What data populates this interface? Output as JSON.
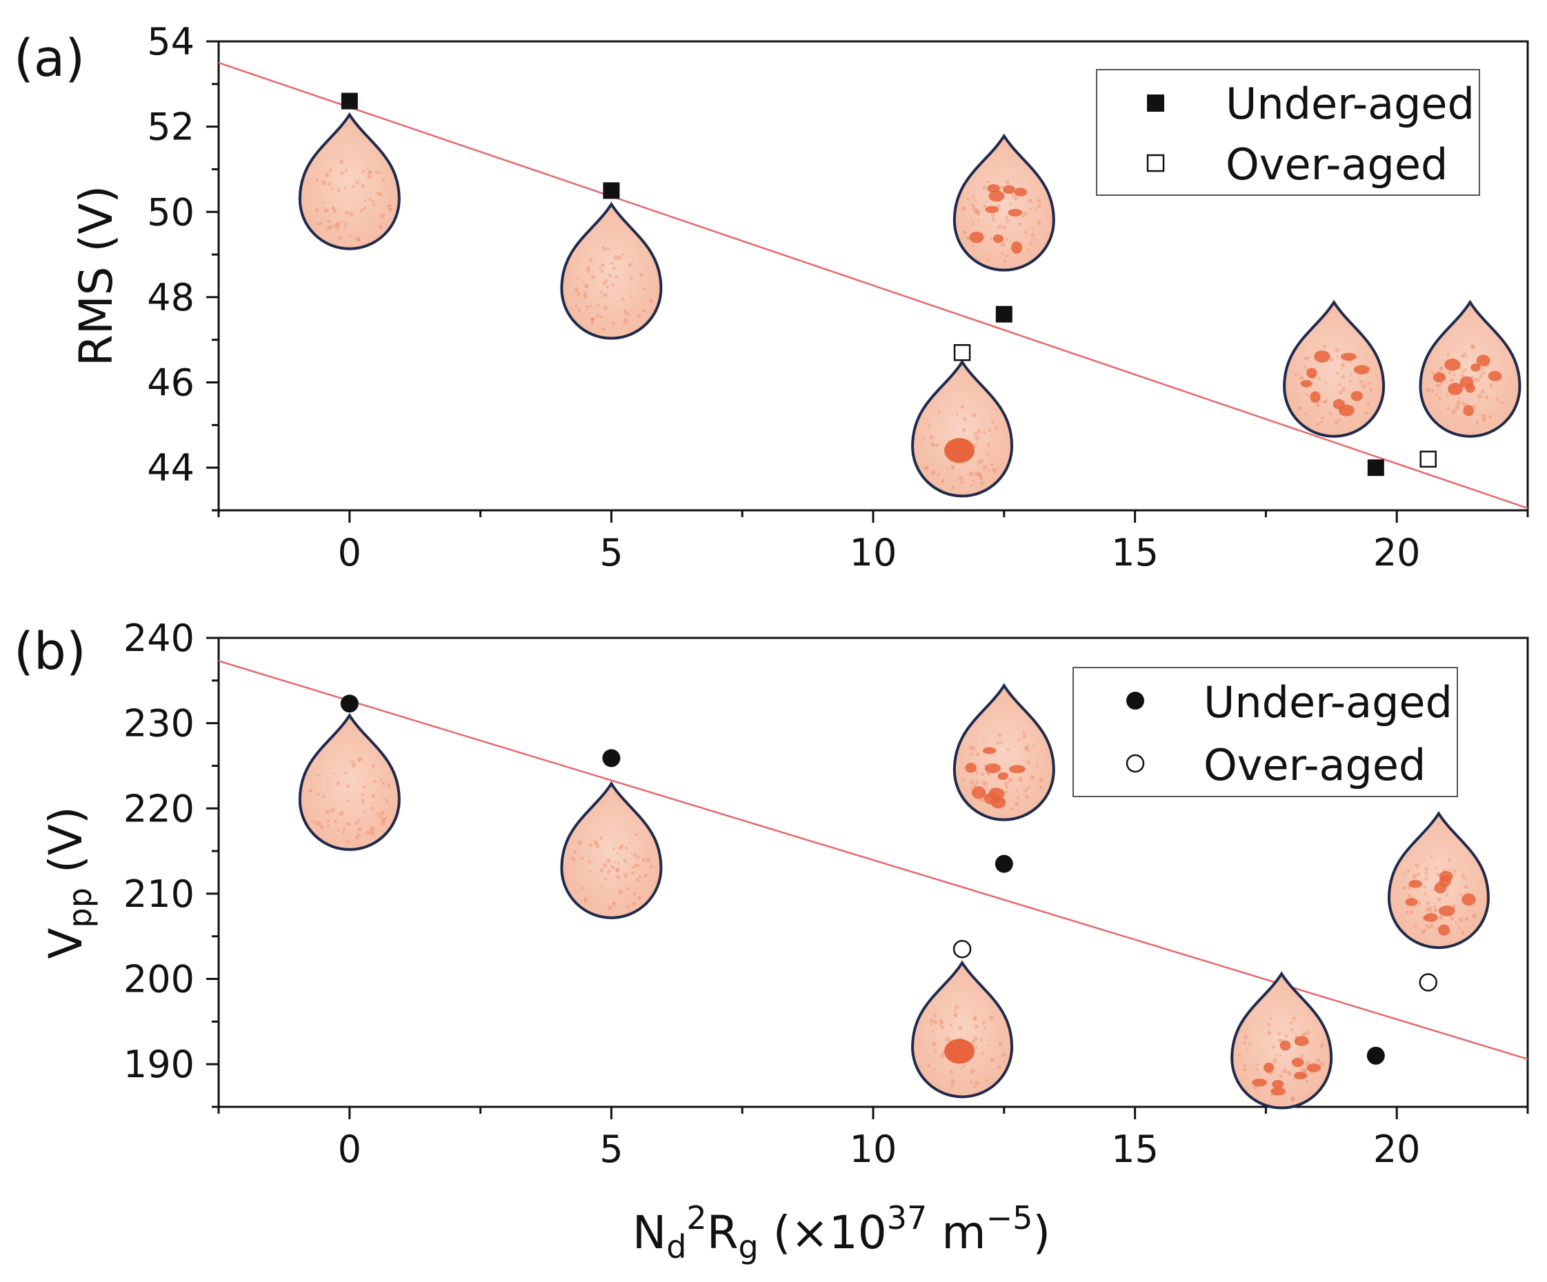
{
  "colors": {
    "axis": "#111111",
    "fit_line": "#e8676a",
    "droplet_fill": "#f7c7b3",
    "droplet_spot": "#e8643c",
    "droplet_outline": "#1f2a4d"
  },
  "chart_data": [
    {
      "type": "scatter",
      "panel_label": "(a)",
      "title": "",
      "xlabel": "N_d^2 R_g (×10^37 m^-5)",
      "ylabel": "RMS (V)",
      "xlim": [
        -2.5,
        22.5
      ],
      "ylim": [
        43,
        54
      ],
      "xticks": [
        0,
        5,
        10,
        15,
        20
      ],
      "xtick_labels": [
        "0",
        "5",
        "10",
        "15",
        "20"
      ],
      "yticks": [
        44,
        46,
        48,
        50,
        52,
        54
      ],
      "ytick_labels": [
        "44",
        "46",
        "48",
        "50",
        "52",
        "54"
      ],
      "grid": false,
      "legend": {
        "position": "top-right",
        "entries": [
          "Under-aged",
          "Over-aged"
        ]
      },
      "series": [
        {
          "name": "Under-aged",
          "marker": "filled-square",
          "x": [
            0,
            5,
            12.5,
            19.6
          ],
          "y": [
            52.6,
            50.5,
            47.6,
            44.0
          ]
        },
        {
          "name": "Over-aged",
          "marker": "open-square",
          "x": [
            11.7,
            20.6
          ],
          "y": [
            46.7,
            44.2
          ]
        }
      ],
      "fit_line": {
        "x": [
          -2.5,
          22.5
        ],
        "y": [
          53.5,
          43.05
        ]
      },
      "annotations": [
        {
          "kind": "droplet-image",
          "pattern": "uniform",
          "x": 0,
          "y": 50.3
        },
        {
          "kind": "droplet-image",
          "pattern": "uniform",
          "x": 5,
          "y": 48.2
        },
        {
          "kind": "droplet-image",
          "pattern": "single-cluster",
          "x": 11.7,
          "y": 44.5
        },
        {
          "kind": "droplet-image",
          "pattern": "scattered-spots",
          "x": 12.5,
          "y": 49.8
        },
        {
          "kind": "droplet-image",
          "pattern": "scattered-spots",
          "x": 18.8,
          "y": 45.9
        },
        {
          "kind": "droplet-image",
          "pattern": "scattered-spots",
          "x": 21.4,
          "y": 45.9
        }
      ]
    },
    {
      "type": "scatter",
      "panel_label": "(b)",
      "title": "",
      "xlabel": "N_d^2 R_g (×10^37 m^-5)",
      "ylabel": "V_pp (V)",
      "xlim": [
        -2.5,
        22.5
      ],
      "ylim": [
        185,
        240
      ],
      "xticks": [
        0,
        5,
        10,
        15,
        20
      ],
      "xtick_labels": [
        "0",
        "5",
        "10",
        "15",
        "20"
      ],
      "yticks": [
        190,
        200,
        210,
        220,
        230,
        240
      ],
      "ytick_labels": [
        "190",
        "200",
        "210",
        "220",
        "230",
        "240"
      ],
      "grid": false,
      "legend": {
        "position": "top-right",
        "entries": [
          "Under-aged",
          "Over-aged"
        ]
      },
      "series": [
        {
          "name": "Under-aged",
          "marker": "filled-circle",
          "x": [
            0,
            5,
            12.5,
            19.6
          ],
          "y": [
            232.3,
            225.9,
            213.5,
            191.0
          ]
        },
        {
          "name": "Over-aged",
          "marker": "open-circle",
          "x": [
            11.7,
            20.6
          ],
          "y": [
            203.5,
            199.6
          ]
        }
      ],
      "fit_line": {
        "x": [
          -2.5,
          22.5
        ],
        "y": [
          237.3,
          190.6
        ]
      },
      "annotations": [
        {
          "kind": "droplet-image",
          "pattern": "uniform",
          "x": 0,
          "y": 221.0
        },
        {
          "kind": "droplet-image",
          "pattern": "uniform",
          "x": 5,
          "y": 213.0
        },
        {
          "kind": "droplet-image",
          "pattern": "single-cluster",
          "x": 11.7,
          "y": 192.0
        },
        {
          "kind": "droplet-image",
          "pattern": "scattered-spots",
          "x": 12.5,
          "y": 224.5
        },
        {
          "kind": "droplet-image",
          "pattern": "scattered-spots",
          "x": 17.8,
          "y": 190.7
        },
        {
          "kind": "droplet-image",
          "pattern": "scattered-spots",
          "x": 20.8,
          "y": 209.5
        }
      ]
    }
  ]
}
